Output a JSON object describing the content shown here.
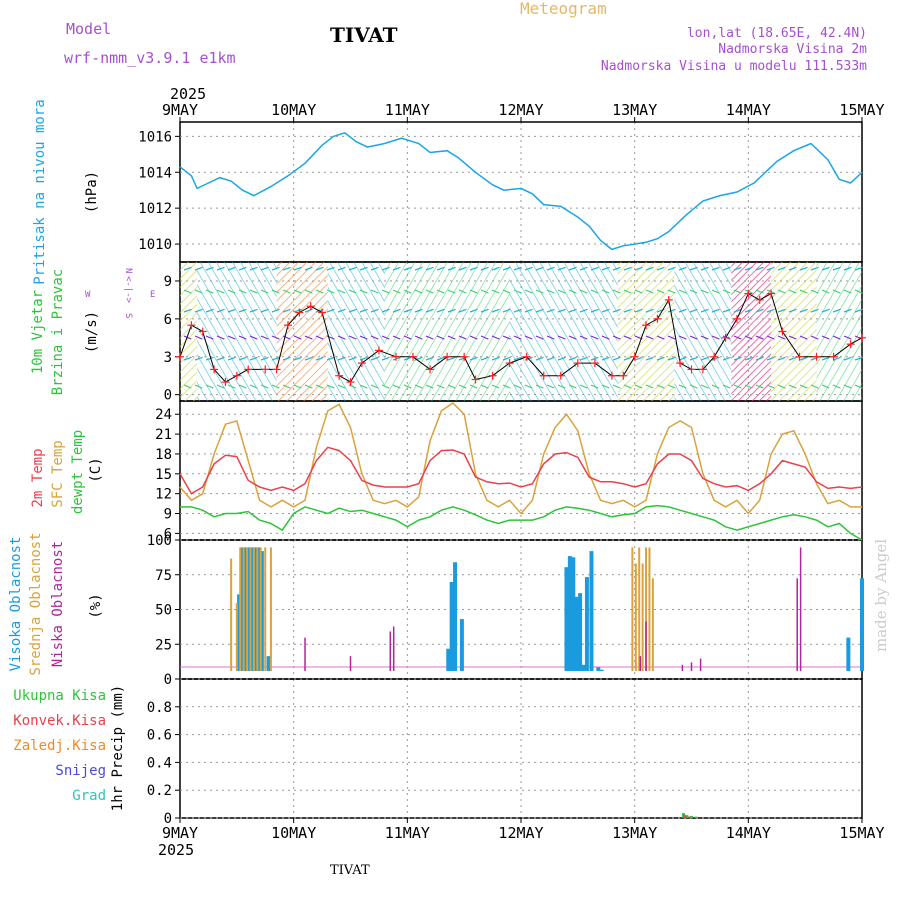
{
  "header": {
    "model_label": "Model",
    "model_name": "wrf-nmm_v3.9.1 e1km",
    "station": "TIVAT",
    "meteogram": "Meteogram",
    "lonlat": "lon,lat (18.65E, 42.4N)",
    "elev_station": "Nadmorska Visina 2m",
    "elev_model": "Nadmorska Visina u modelu 111.533m",
    "year_top": "2025",
    "year_bottom": "2025",
    "footer_station": "TIVAT",
    "watermark": "made by Angel"
  },
  "time_axis": {
    "labels": [
      "9MAY",
      "10MAY",
      "11MAY",
      "12MAY",
      "13MAY",
      "14MAY",
      "15MAY"
    ],
    "days": 6
  },
  "colors": {
    "pressure": "#1aa6e6",
    "t2m": "#e8424a",
    "sfc": "#d9a23c",
    "dew": "#2ec43b",
    "high_cloud": "#1a9be0",
    "mid_cloud": "#d9a23c",
    "low_cloud": "#b0249c",
    "wind_speed": "#000000",
    "wind_marker": "#ff2020"
  },
  "panels": {
    "pressure": {
      "ylabel_name": "Pritisak na nivou mora",
      "ylabel_unit": "(hPa)",
      "ticks": [
        "1010",
        "1012",
        "1014",
        "1016"
      ]
    },
    "wind": {
      "ylabel_name1": "10m Vjetar",
      "ylabel_name2": "Brzina i Pravac",
      "ylabel_unit": "(m/s)",
      "ticks": [
        "0",
        "3",
        "6",
        "9"
      ],
      "compass_n": "N",
      "compass_arrow": "<-|->",
      "compass_s": "S",
      "compass_w": "W",
      "compass_e": "E"
    },
    "temp": {
      "ylabel_t2m": "2m Temp",
      "ylabel_sfc": "SFC Temp",
      "ylabel_dew": "dewpt Temp",
      "ylabel_unit": "(C)",
      "ticks": [
        "6",
        "9",
        "12",
        "15",
        "18",
        "21",
        "24"
      ]
    },
    "cloud": {
      "ylabel_high": "Visoka Oblacnost",
      "ylabel_mid": "Srednja Oblacnost",
      "ylabel_low": "Niska Oblacnost",
      "ylabel_unit": "(%)",
      "ticks": [
        "0",
        "25",
        "50",
        "75",
        "100"
      ]
    },
    "precip": {
      "legend_total": "Ukupna Kisa",
      "legend_conv": "Konvek.Kisa",
      "legend_frz": "Zaledj.Kisa",
      "legend_snow": "Snijeg",
      "legend_hail": "Grad",
      "ylabel": "1hr Precip (mm)",
      "ticks": [
        "0",
        "0.2",
        "0.4",
        "0.6",
        "0.8"
      ],
      "color_total": "#2ec43b",
      "color_conv": "#e8424a",
      "color_frz": "#f08a2a",
      "color_snow": "#4a4ad8",
      "color_hail": "#2ec4b8"
    }
  },
  "chart_data": [
    {
      "type": "line",
      "name": "pressure",
      "ylim": [
        1009,
        1016.8
      ],
      "x_days": [
        0,
        0.1,
        0.15,
        0.25,
        0.35,
        0.45,
        0.55,
        0.65,
        0.8,
        0.95,
        1.1,
        1.25,
        1.35,
        1.45,
        1.55,
        1.65,
        1.8,
        1.95,
        2.1,
        2.2,
        2.35,
        2.45,
        2.6,
        2.75,
        2.85,
        3.0,
        3.1,
        3.2,
        3.35,
        3.5,
        3.6,
        3.7,
        3.8,
        3.9,
        4.0,
        4.1,
        4.2,
        4.3,
        4.45,
        4.6,
        4.75,
        4.9,
        5.05,
        5.15,
        5.25,
        5.4,
        5.55,
        5.7,
        5.8,
        5.9,
        6.0
      ],
      "values": [
        1014.3,
        1013.8,
        1013.1,
        1013.4,
        1013.7,
        1013.5,
        1013.0,
        1012.7,
        1013.2,
        1013.8,
        1014.5,
        1015.5,
        1016.0,
        1016.2,
        1015.7,
        1015.4,
        1015.6,
        1015.9,
        1015.6,
        1015.1,
        1015.2,
        1014.8,
        1014.0,
        1013.3,
        1013.0,
        1013.1,
        1012.8,
        1012.2,
        1012.1,
        1011.5,
        1011.0,
        1010.2,
        1009.7,
        1009.9,
        1010.0,
        1010.1,
        1010.3,
        1010.7,
        1011.6,
        1012.4,
        1012.7,
        1012.9,
        1013.4,
        1014.0,
        1014.6,
        1015.2,
        1015.6,
        1014.7,
        1013.6,
        1013.4,
        1014.0
      ]
    },
    {
      "type": "line",
      "name": "wind_speed",
      "ylim": [
        -0.5,
        10.5
      ],
      "x_days": [
        0,
        0.1,
        0.2,
        0.3,
        0.4,
        0.5,
        0.6,
        0.75,
        0.85,
        0.95,
        1.05,
        1.15,
        1.25,
        1.4,
        1.5,
        1.6,
        1.75,
        1.9,
        2.05,
        2.2,
        2.35,
        2.5,
        2.6,
        2.75,
        2.9,
        3.05,
        3.2,
        3.35,
        3.5,
        3.65,
        3.8,
        3.9,
        4.0,
        4.1,
        4.2,
        4.3,
        4.4,
        4.5,
        4.6,
        4.7,
        4.8,
        4.9,
        5.0,
        5.1,
        5.2,
        5.3,
        5.45,
        5.6,
        5.75,
        5.9,
        6.0
      ],
      "values": [
        3.0,
        5.5,
        5.0,
        2.0,
        1.0,
        1.5,
        2.0,
        2.0,
        2.0,
        5.5,
        6.5,
        7.0,
        6.5,
        1.5,
        1.0,
        2.5,
        3.5,
        3.0,
        3.0,
        2.0,
        3.0,
        3.0,
        1.2,
        1.5,
        2.5,
        3.0,
        1.5,
        1.5,
        2.5,
        2.5,
        1.5,
        1.5,
        3.0,
        5.5,
        6.0,
        7.5,
        2.5,
        2.0,
        2.0,
        3.0,
        4.5,
        6.0,
        8.0,
        7.5,
        8.0,
        5.0,
        3.0,
        3.0,
        3.0,
        4.0,
        4.5
      ]
    },
    {
      "type": "line",
      "name": "temperature",
      "ylim": [
        5,
        26
      ],
      "series": [
        {
          "name": "2m Temp",
          "x_days": [
            0,
            0.1,
            0.2,
            0.3,
            0.4,
            0.5,
            0.6,
            0.7,
            0.8,
            0.9,
            1.0,
            1.1,
            1.2,
            1.3,
            1.4,
            1.5,
            1.6,
            1.7,
            1.8,
            1.9,
            2.0,
            2.1,
            2.2,
            2.3,
            2.4,
            2.5,
            2.6,
            2.7,
            2.8,
            2.9,
            3.0,
            3.1,
            3.2,
            3.3,
            3.4,
            3.5,
            3.6,
            3.7,
            3.8,
            3.9,
            4.0,
            4.1,
            4.2,
            4.3,
            4.4,
            4.5,
            4.6,
            4.7,
            4.8,
            4.9,
            5.0,
            5.1,
            5.2,
            5.3,
            5.4,
            5.5,
            5.6,
            5.7,
            5.8,
            5.9,
            6.0
          ],
          "values": [
            15,
            12,
            13,
            16.5,
            17.8,
            17.6,
            14,
            13,
            12.5,
            13,
            12.5,
            13.5,
            17,
            19,
            18.5,
            17,
            14,
            13.3,
            13,
            13,
            13,
            13.5,
            17,
            18.5,
            18.6,
            18,
            14.5,
            13.8,
            13.5,
            13.6,
            13,
            13.5,
            16.5,
            18,
            18.2,
            17.5,
            14.5,
            13.8,
            13.8,
            13.5,
            13,
            13.5,
            16.5,
            18,
            18,
            17,
            14.3,
            13.5,
            13,
            13.2,
            12.5,
            13.5,
            15,
            17,
            16.5,
            16,
            13.8,
            12.8,
            13,
            12.8,
            13
          ]
        },
        {
          "name": "SFC Temp",
          "x_days": [
            0,
            0.1,
            0.2,
            0.3,
            0.4,
            0.5,
            0.6,
            0.7,
            0.8,
            0.9,
            1.0,
            1.1,
            1.2,
            1.3,
            1.4,
            1.5,
            1.6,
            1.7,
            1.8,
            1.9,
            2.0,
            2.1,
            2.2,
            2.3,
            2.4,
            2.5,
            2.6,
            2.7,
            2.8,
            2.9,
            3.0,
            3.1,
            3.2,
            3.3,
            3.4,
            3.5,
            3.6,
            3.7,
            3.8,
            3.9,
            4.0,
            4.1,
            4.2,
            4.3,
            4.4,
            4.5,
            4.6,
            4.7,
            4.8,
            4.9,
            5.0,
            5.1,
            5.2,
            5.3,
            5.4,
            5.5,
            5.6,
            5.7,
            5.8,
            5.9,
            6.0
          ],
          "values": [
            13,
            11,
            12,
            18,
            22.5,
            23,
            17,
            11,
            10,
            11,
            10,
            11,
            19,
            24.5,
            25.5,
            22,
            15,
            11,
            10.5,
            11,
            10,
            11.5,
            20,
            24.5,
            25.7,
            24,
            15,
            11,
            10,
            11,
            9,
            11,
            18,
            22,
            24,
            21.5,
            15,
            11,
            10.5,
            11,
            10,
            11,
            18,
            22,
            23,
            22,
            15,
            11,
            10,
            11,
            9,
            11,
            18,
            21,
            21.5,
            18,
            13.5,
            10.5,
            11,
            10,
            10
          ]
        },
        {
          "name": "dewpt Temp",
          "x_days": [
            0,
            0.1,
            0.2,
            0.3,
            0.4,
            0.5,
            0.6,
            0.7,
            0.8,
            0.9,
            1.0,
            1.1,
            1.2,
            1.3,
            1.4,
            1.5,
            1.6,
            1.7,
            1.8,
            1.9,
            2.0,
            2.1,
            2.2,
            2.3,
            2.4,
            2.5,
            2.6,
            2.7,
            2.8,
            2.9,
            3.0,
            3.1,
            3.2,
            3.3,
            3.4,
            3.5,
            3.6,
            3.7,
            3.8,
            3.9,
            4.0,
            4.1,
            4.2,
            4.3,
            4.4,
            4.5,
            4.6,
            4.7,
            4.8,
            4.9,
            5.0,
            5.1,
            5.2,
            5.3,
            5.4,
            5.5,
            5.6,
            5.7,
            5.8,
            5.9,
            6.0
          ],
          "values": [
            10,
            10,
            9.5,
            8.5,
            9,
            9,
            9.3,
            8,
            7.5,
            6.5,
            9,
            10,
            9.5,
            9,
            9.8,
            9.3,
            9.5,
            9,
            8.5,
            8,
            7,
            8,
            8.5,
            9.5,
            10,
            9.5,
            8.8,
            8,
            7.5,
            8,
            8,
            8,
            8.5,
            9.5,
            10,
            9.8,
            9.5,
            9,
            8.5,
            8.8,
            9,
            10,
            10.2,
            10,
            9.5,
            9,
            8.5,
            8,
            7,
            6.5,
            7,
            7.5,
            8,
            8.5,
            8.8,
            8.5,
            8,
            7,
            7.5,
            6,
            5
          ]
        }
      ]
    },
    {
      "type": "bar",
      "name": "cloud_cover",
      "ylim": [
        0,
        100
      ],
      "series": [
        {
          "name": "Visoka Oblacnost",
          "x_days": [
            0.52,
            0.55,
            0.58,
            0.6,
            0.63,
            0.66,
            0.69,
            0.72,
            0.78,
            2.36,
            2.39,
            2.42,
            2.48,
            3.4,
            3.43,
            3.46,
            3.49,
            3.52,
            3.55,
            3.58,
            3.62,
            3.68,
            3.71,
            5.88,
            6.0
          ],
          "values": [
            62,
            100,
            100,
            100,
            100,
            100,
            100,
            97,
            12,
            18,
            72,
            88,
            42,
            84,
            93,
            92,
            60,
            63,
            5,
            76,
            97,
            3,
            1,
            27,
            75
          ]
        },
        {
          "name": "Srednja Oblacnost",
          "x_days": [
            0.45,
            0.5,
            0.53,
            0.56,
            0.59,
            0.62,
            0.65,
            0.68,
            0.71,
            0.75,
            0.8,
            3.98,
            4.01,
            4.04,
            4.07,
            4.1,
            4.13,
            4.16
          ],
          "values": [
            91,
            55,
            100,
            100,
            100,
            100,
            100,
            100,
            100,
            100,
            100,
            100,
            87,
            100,
            87,
            100,
            100,
            75
          ]
        },
        {
          "name": "Niska Oblacnost",
          "x_days": [
            1.1,
            1.5,
            1.85,
            1.88,
            4.05,
            4.1,
            4.42,
            4.5,
            4.58,
            5.43,
            5.46
          ],
          "values": [
            27,
            12,
            32,
            36,
            12,
            40,
            5,
            7,
            10,
            75,
            100
          ]
        }
      ]
    },
    {
      "type": "bar",
      "name": "precip_1hr",
      "ylim": [
        0,
        1.0
      ],
      "series": [
        {
          "name": "Ukupna Kisa",
          "x_days": [
            4.43,
            4.46,
            4.5,
            4.54
          ],
          "values": [
            0.035,
            0.02,
            0.015,
            0.01
          ]
        },
        {
          "name": "Konvek.Kisa",
          "x_days": [
            4.44,
            4.48
          ],
          "values": [
            0.02,
            0.01
          ]
        },
        {
          "name": "Zaledj.Kisa",
          "x_days": [],
          "values": []
        },
        {
          "name": "Snijeg",
          "x_days": [],
          "values": []
        },
        {
          "name": "Grad",
          "x_days": [],
          "values": []
        }
      ]
    }
  ]
}
